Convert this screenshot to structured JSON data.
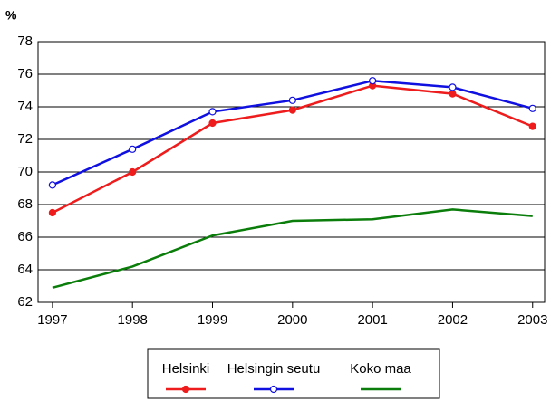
{
  "chart_data": {
    "type": "line",
    "y_label": "%",
    "x": [
      1997,
      1998,
      1999,
      2000,
      2001,
      2002,
      2003
    ],
    "xlim": [
      1996.82,
      2003.15
    ],
    "xticks": [
      1997,
      1998,
      1999,
      2000,
      2001,
      2002,
      2003
    ],
    "ylim": [
      62,
      78
    ],
    "yticks": [
      62,
      64,
      66,
      68,
      70,
      72,
      74,
      76,
      78
    ],
    "grid": true,
    "legend": "bottom",
    "series": [
      {
        "name": "Helsinki",
        "color": "#ee1c1c",
        "marker": "filled",
        "values": [
          67.5,
          70.0,
          73.0,
          73.8,
          75.3,
          74.8,
          72.8
        ]
      },
      {
        "name": "Helsingin seutu",
        "color": "#1010e0",
        "marker": "open",
        "values": [
          69.2,
          71.4,
          73.7,
          74.4,
          75.6,
          75.2,
          73.9
        ]
      },
      {
        "name": "Koko maa",
        "color": "#0a7d0a",
        "marker": "none",
        "values": [
          62.9,
          64.2,
          66.1,
          67.0,
          67.1,
          67.7,
          67.3
        ]
      }
    ]
  }
}
